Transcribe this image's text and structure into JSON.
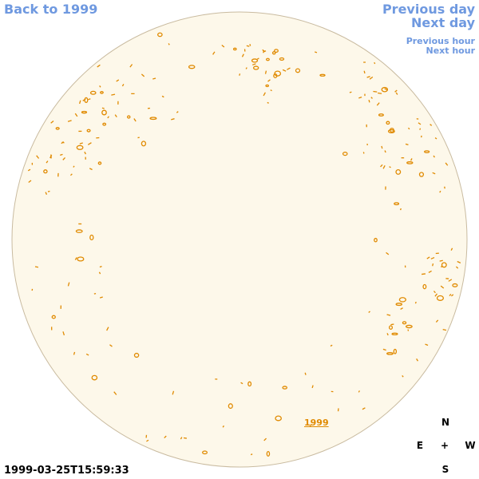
{
  "navigation": {
    "back": "Back to 1999",
    "previous_day": "Previous day",
    "next_day": "Next day",
    "previous_hour": "Previous hour",
    "next_hour": "Next hour"
  },
  "disk_label": "1999",
  "timestamp": "1999-03-25T15:59:33",
  "compass": {
    "north": "N",
    "east": "E",
    "center": "+",
    "west": "W",
    "south": "S"
  }
}
